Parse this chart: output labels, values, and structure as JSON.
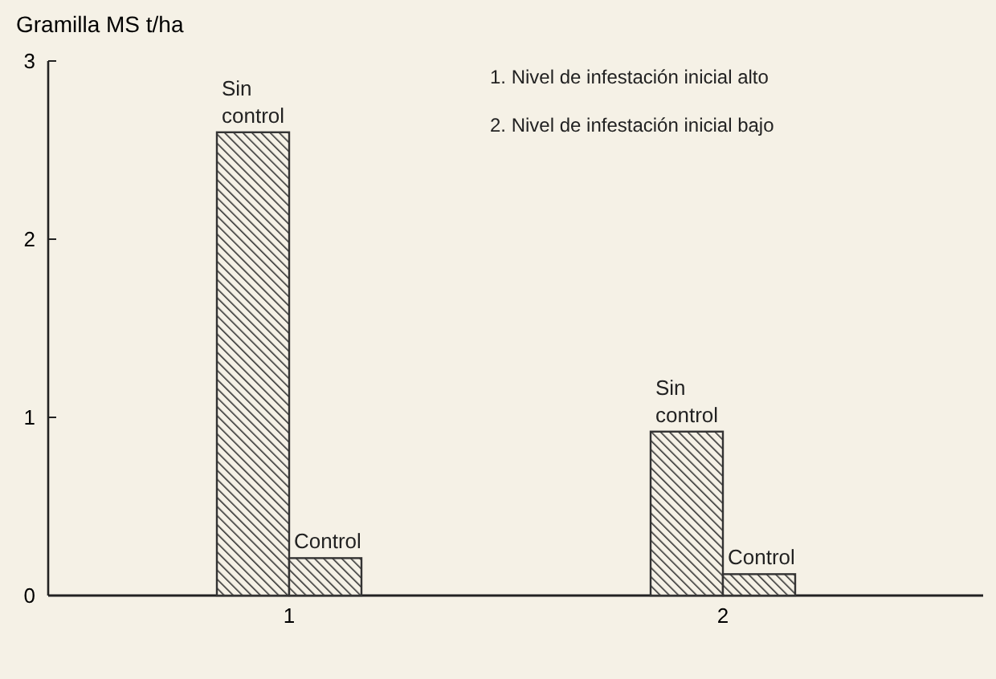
{
  "chart_data": {
    "type": "bar",
    "ylabel": "Gramilla MS t/ha",
    "categories": [
      "1",
      "2"
    ],
    "series": [
      {
        "name": "Sin control",
        "color": "#333333",
        "values": [
          2.6,
          0.92
        ]
      },
      {
        "name": "Control",
        "color": "#333333",
        "values": [
          0.21,
          0.12
        ]
      }
    ],
    "ylim": [
      0,
      3
    ],
    "yticks": [
      0,
      1,
      2,
      3
    ],
    "grid": false,
    "annotations": [
      "1. Nivel de infestación inicial alto",
      "2. Nivel de infestación inicial bajo"
    ]
  }
}
